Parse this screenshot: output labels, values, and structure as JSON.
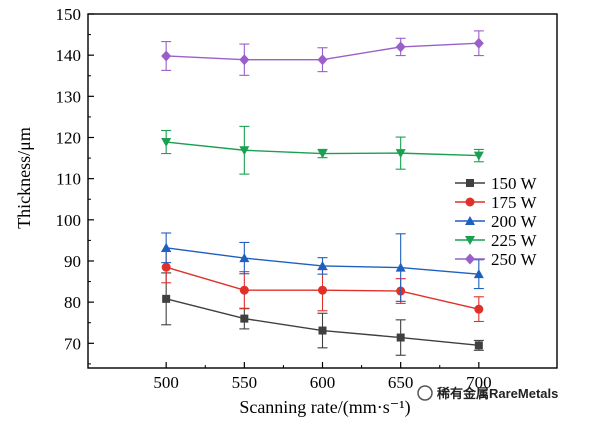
{
  "chart_data": {
    "type": "line",
    "xlabel": "Scanning rate/(mm·s⁻¹)",
    "ylabel": "Thickness/μm",
    "x": [
      500,
      550,
      600,
      650,
      700
    ],
    "xlim": [
      450,
      750
    ],
    "ylim": [
      64,
      150
    ],
    "xticks": [
      500,
      550,
      600,
      650,
      700
    ],
    "yticks": [
      70,
      80,
      90,
      100,
      110,
      120,
      130,
      140,
      150
    ],
    "legend_position": "middle-right",
    "grid": false,
    "series": [
      {
        "name": "150 W",
        "color": "#404040",
        "marker": "square",
        "values": [
          80.8,
          76.0,
          73.1,
          71.4,
          69.5
        ],
        "errors": [
          6.3,
          2.5,
          4.2,
          4.3,
          1.2
        ]
      },
      {
        "name": "175 W",
        "color": "#e0302a",
        "marker": "circle",
        "values": [
          88.5,
          82.9,
          82.9,
          82.7,
          78.3
        ],
        "errors": [
          3.8,
          4.5,
          5.0,
          3.0,
          3.0
        ]
      },
      {
        "name": "200 W",
        "color": "#1f5fbf",
        "marker": "triangle-up",
        "values": [
          93.2,
          90.7,
          88.8,
          88.4,
          86.8
        ],
        "errors": [
          3.6,
          3.8,
          2.0,
          8.2,
          3.5
        ]
      },
      {
        "name": "225 W",
        "color": "#1aa050",
        "marker": "triangle-down",
        "values": [
          118.9,
          116.9,
          116.1,
          116.2,
          115.6
        ],
        "errors": [
          2.8,
          5.8,
          1.0,
          3.9,
          1.5
        ]
      },
      {
        "name": "250 W",
        "color": "#9b5fc9",
        "marker": "diamond",
        "values": [
          139.8,
          138.9,
          138.9,
          142.0,
          142.9
        ],
        "errors": [
          3.5,
          3.8,
          2.9,
          2.1,
          3.0
        ]
      }
    ]
  },
  "watermark": {
    "text": "稀有金属RareMetals"
  }
}
